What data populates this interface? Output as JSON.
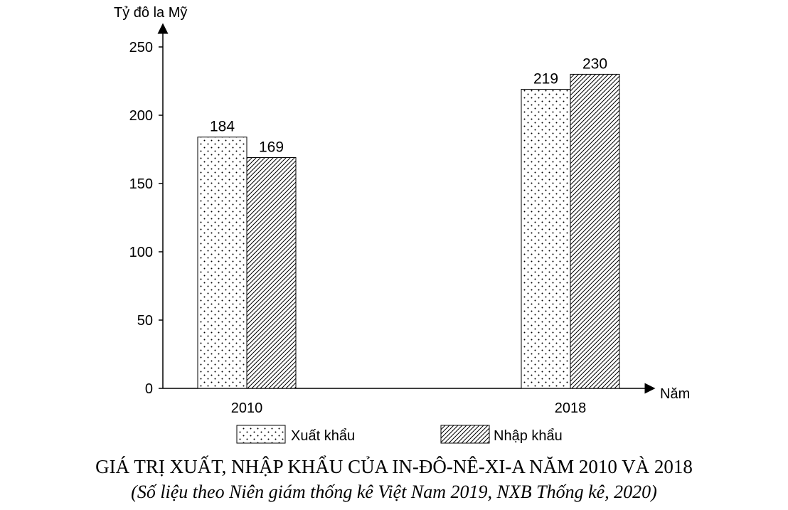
{
  "chart_data": {
    "type": "bar",
    "title": "GIÁ TRỊ XUẤT, NHẬP KHẨU CỦA IN-ĐÔ-NÊ-XI-A NĂM 2010 VÀ 2018",
    "subtitle": "(Số liệu theo Niên giám thống kê Việt Nam 2019, NXB Thống kê, 2020)",
    "xlabel": "Năm",
    "ylabel": "Tỷ đô la Mỹ",
    "categories": [
      "2010",
      "2018"
    ],
    "ylim": [
      0,
      250
    ],
    "yticks": [
      "0",
      "50",
      "100",
      "150",
      "200",
      "250"
    ],
    "series": [
      {
        "name": "Xuất khẩu",
        "pattern": "dots",
        "values": [
          184,
          219
        ]
      },
      {
        "name": "Nhập khẩu",
        "pattern": "diagonal-hatch",
        "values": [
          169,
          230
        ]
      }
    ],
    "legend_position": "bottom",
    "colors": {
      "ink": "#000000",
      "background": "#ffffff"
    }
  }
}
